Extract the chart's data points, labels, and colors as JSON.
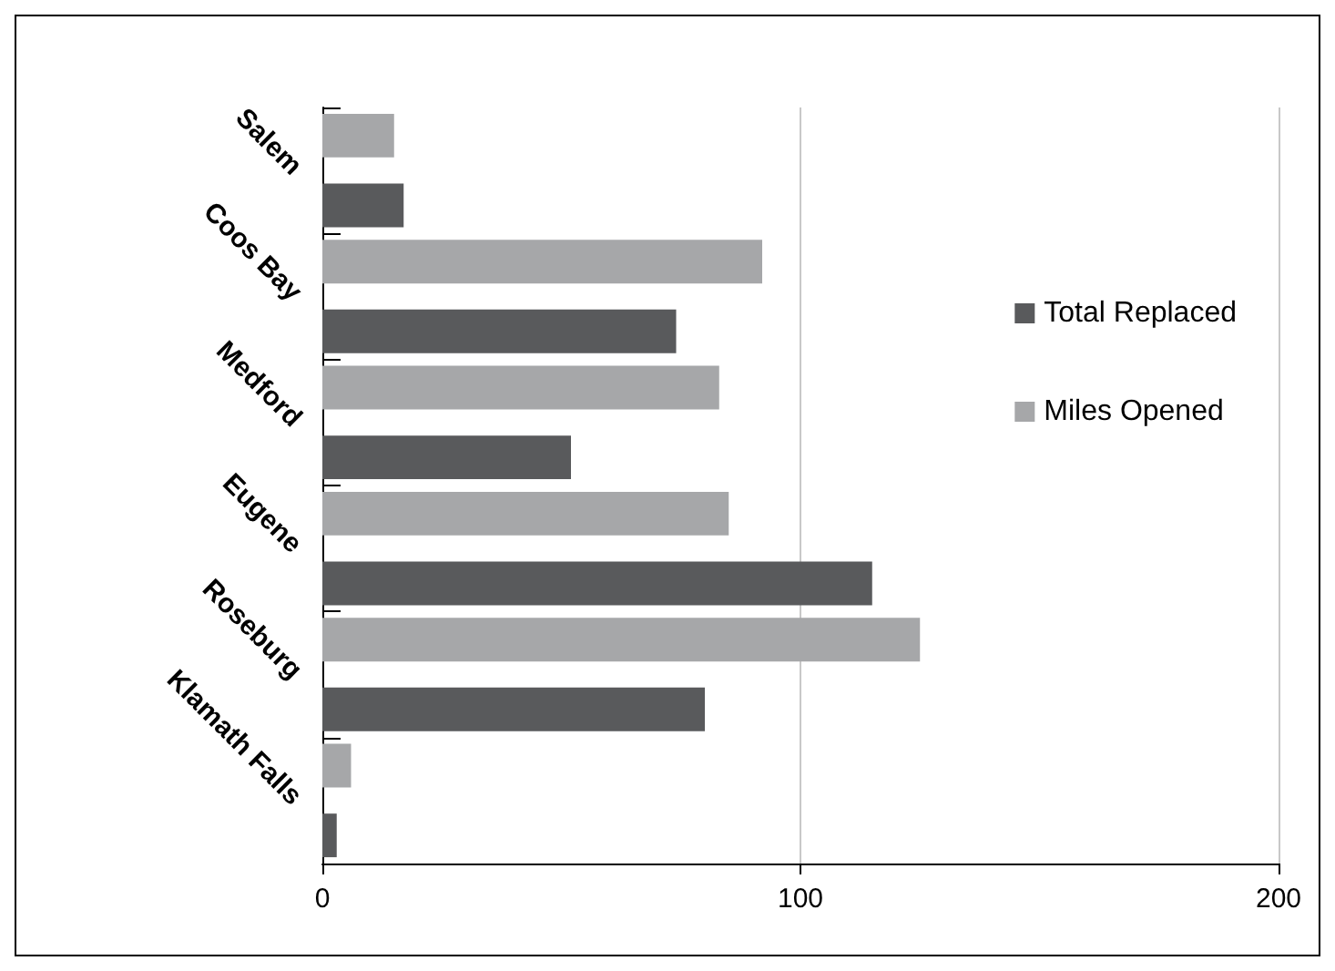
{
  "chart_data": {
    "type": "bar",
    "orientation": "horizontal",
    "categories": [
      "Salem",
      "Coos Bay",
      "Medford",
      "Eugene",
      "Roseburg",
      "Klamath Falls"
    ],
    "series": [
      {
        "name": "Total Replaced",
        "color": "#595a5c",
        "values": [
          17,
          74,
          52,
          115,
          80,
          3
        ]
      },
      {
        "name": "Miles Opened",
        "color": "#a6a7a9",
        "values": [
          15,
          92,
          83,
          85,
          125,
          6
        ]
      }
    ],
    "xlim": [
      0,
      200
    ],
    "xticks": [
      0,
      100,
      200
    ],
    "grid": "x",
    "legend": "right"
  }
}
